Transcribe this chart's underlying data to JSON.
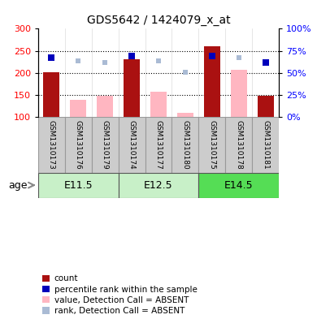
{
  "title": "GDS5642 / 1424079_x_at",
  "samples": [
    "GSM1310173",
    "GSM1310176",
    "GSM1310179",
    "GSM1310174",
    "GSM1310177",
    "GSM1310180",
    "GSM1310175",
    "GSM1310178",
    "GSM1310181"
  ],
  "age_groups": [
    {
      "label": "E11.5",
      "start": 0,
      "end": 3,
      "color": "#C8F0C8"
    },
    {
      "label": "E12.5",
      "start": 3,
      "end": 6,
      "color": "#C8F0C8"
    },
    {
      "label": "E14.5",
      "start": 6,
      "end": 9,
      "color": "#55DD55"
    }
  ],
  "count_values": [
    202,
    null,
    null,
    230,
    null,
    null,
    260,
    null,
    149
  ],
  "absent_value_bars": [
    null,
    139,
    149,
    null,
    158,
    109,
    null,
    207,
    null
  ],
  "percentile_rank": [
    67,
    null,
    null,
    69,
    null,
    null,
    69,
    null,
    62
  ],
  "absent_rank_markers": [
    null,
    64,
    62,
    null,
    64,
    51,
    null,
    67,
    null
  ],
  "ylim_left": [
    100,
    300
  ],
  "ylim_right": [
    0,
    100
  ],
  "yticks_left": [
    100,
    150,
    200,
    250,
    300
  ],
  "yticks_right": [
    0,
    25,
    50,
    75,
    100
  ],
  "ytick_labels_right": [
    "0%",
    "25%",
    "50%",
    "75%",
    "100%"
  ],
  "bar_width": 0.6,
  "count_color": "#AA1111",
  "absent_value_color": "#FFB6C1",
  "percentile_color": "#0000BB",
  "absent_rank_color": "#AABBD4",
  "sample_bg": "#CCCCCC",
  "background_plot": "#FFFFFF",
  "legend_items": [
    {
      "label": "count",
      "color": "#AA1111"
    },
    {
      "label": "percentile rank within the sample",
      "color": "#0000BB"
    },
    {
      "label": "value, Detection Call = ABSENT",
      "color": "#FFB6C1"
    },
    {
      "label": "rank, Detection Call = ABSENT",
      "color": "#AABBD4"
    }
  ]
}
